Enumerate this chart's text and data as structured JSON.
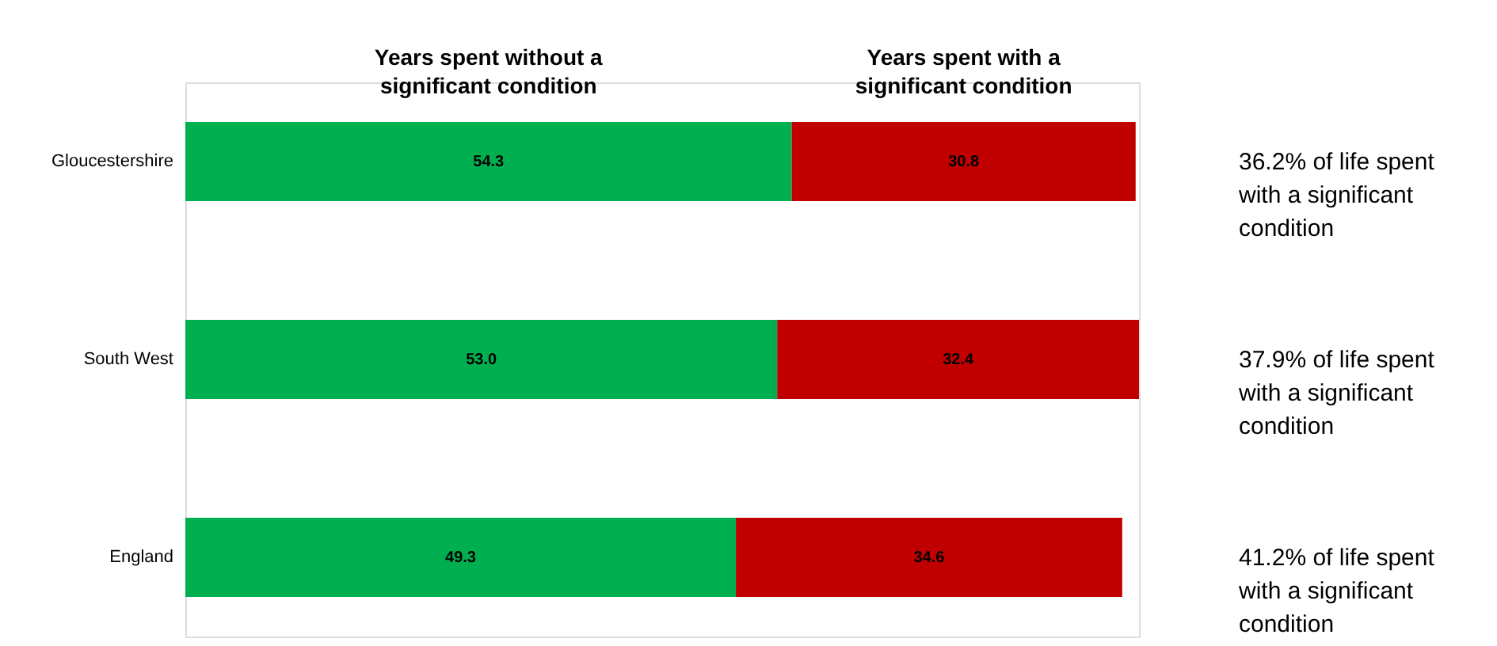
{
  "chart_data": {
    "type": "bar",
    "orientation": "horizontal",
    "stacked": true,
    "categories": [
      "Gloucestershire",
      "South West",
      "England"
    ],
    "series": [
      {
        "name": "Years spent without a significant condition",
        "color": "#00b050",
        "values": [
          54.3,
          53.0,
          49.3
        ],
        "value_labels": [
          "54.3",
          "53.0",
          "49.3"
        ]
      },
      {
        "name": "Years spent with a significant condition",
        "color": "#c00000",
        "values": [
          30.8,
          32.4,
          34.6
        ],
        "value_labels": [
          "30.8",
          "32.4",
          "34.6"
        ]
      }
    ],
    "annotations": [
      "36.2% of life spent with a significant condition",
      "37.9% of life spent with a significant condition",
      "41.2% of life spent with a significant condition"
    ]
  }
}
